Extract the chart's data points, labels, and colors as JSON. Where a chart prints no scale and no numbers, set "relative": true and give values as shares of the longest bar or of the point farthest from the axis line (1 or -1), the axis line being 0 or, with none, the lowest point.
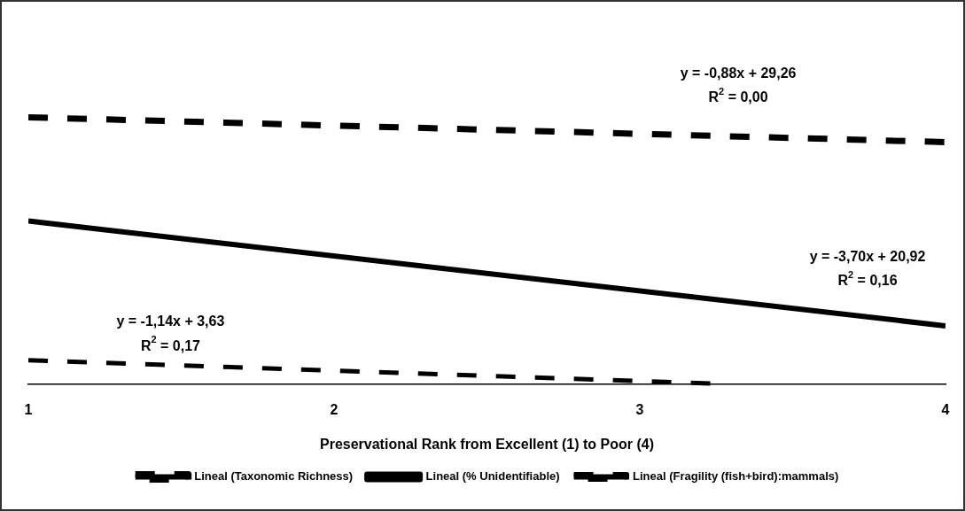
{
  "chart_data": {
    "type": "line",
    "relative": true,
    "xlabel": "Preservational Rank from Excellent (1) to Poor (4)",
    "xlim": [
      1,
      4
    ],
    "xticks": [
      1,
      2,
      3,
      4
    ],
    "grid": false,
    "legend": "bottom",
    "marker": "none",
    "series": [
      {
        "name": "Lineal (Taxonomic Richness)",
        "color": "#000000",
        "line_style": "dashed",
        "x": [
          1,
          4
        ],
        "values": [
          1,
          0.907
        ]
      },
      {
        "name": "Lineal (% Unidentifiable)",
        "color": "#000000",
        "line_style": "solid",
        "x": [
          1,
          4
        ],
        "values": [
          0.611,
          0.218
        ]
      },
      {
        "name": "Lineal (Fragility (fish+bird):mammals)",
        "color": "#000000",
        "line_style": "dashed",
        "x": [
          1,
          3.28
        ],
        "values": [
          0.089,
          0
        ]
      }
    ],
    "annotations": [
      "y = -0,88x + 29,26",
      "R$^{2}$ = 0,00",
      "y = -3,70x + 20,92",
      "R$^{2}$ = 0,16",
      "y = -1,14x + 3,63",
      "R$^{2}$ = 0,17"
    ]
  }
}
